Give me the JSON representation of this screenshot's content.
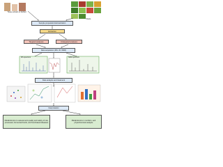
{
  "header": {
    "source": "Tissue extracts or biofluid",
    "plants": "Plants"
  },
  "steps": {
    "preparation": "Sample preparation/derivatization",
    "extraction": "Extraction",
    "targeted": "Targeted analyses",
    "untargeted": "Untargeted analyses",
    "acquisition": "Data acquisition (MS, IR, NMR)",
    "ms": "MS spectrum",
    "nmr": "NMR spectrum",
    "analysis": "Data analysis and treatment",
    "interpretation": "Interpretation"
  },
  "outcomes": {
    "food": "Metabolomics to assessment quality and safety of raw, processed, fermented foods, and food-based diseases",
    "nutrition": "Metabolomics in nutrition, and phytochemical analysis"
  }
}
